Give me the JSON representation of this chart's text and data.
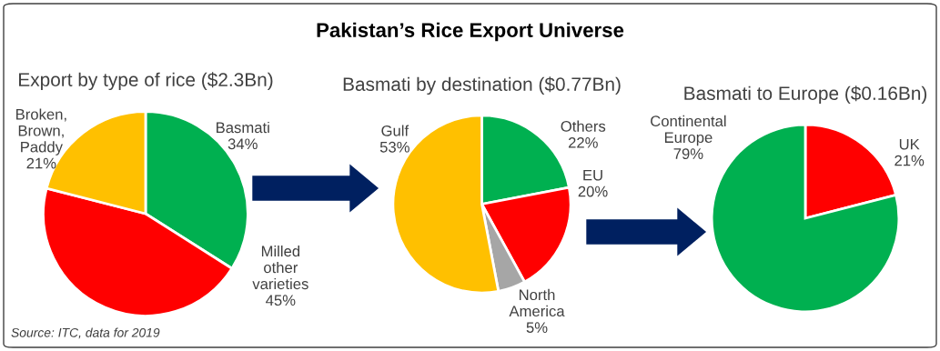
{
  "chart_data": [
    {
      "type": "pie",
      "title": "Export by type of rice ($2.3Bn)",
      "categories": [
        "Basmati",
        "Milled\nother\nvarieties",
        "Broken,\nBrown,\nPaddy"
      ],
      "values": [
        34,
        45,
        21
      ],
      "value_labels": [
        "34%",
        "45%",
        "21%"
      ],
      "colors": [
        "#00b050",
        "#ff0000",
        "#ffc000"
      ],
      "annotations": [
        "Pakistan’s Rice Export Universe",
        "Source: ITC, data for 2019"
      ]
    },
    {
      "type": "pie",
      "title": "Basmati by destination ($0.77Bn)",
      "categories": [
        "Others",
        "EU",
        "North\nAmerica",
        "Gulf"
      ],
      "values": [
        22,
        20,
        5,
        53
      ],
      "value_labels": [
        "22%",
        "20%",
        "5%",
        "53%"
      ],
      "colors": [
        "#00b050",
        "#ff0000",
        "#a6a6a6",
        "#ffc000"
      ]
    },
    {
      "type": "pie",
      "title": "Basmati to Europe ($0.16Bn)",
      "categories": [
        "UK",
        "Continental\nEurope"
      ],
      "values": [
        21,
        79
      ],
      "value_labels": [
        "21%",
        "79%"
      ],
      "colors": [
        "#ff0000",
        "#00b050"
      ]
    }
  ]
}
